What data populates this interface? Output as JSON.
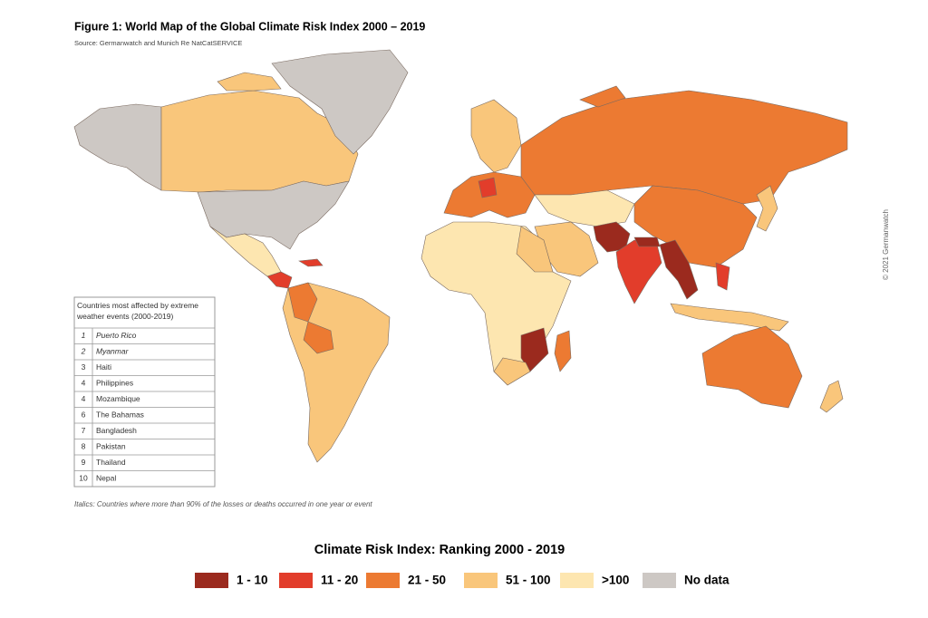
{
  "header": {
    "title": "Figure 1: World Map of the Global Climate Risk Index 2000 – 2019",
    "source": "Source: Germanwatch and Munich Re NatCatSERVICE"
  },
  "table": {
    "header": "Countries most affected by extreme weather events (2000-2019)",
    "rows": [
      {
        "rank": 1,
        "country": "Puerto Rico",
        "italic": true
      },
      {
        "rank": 2,
        "country": "Myanmar",
        "italic": true
      },
      {
        "rank": 3,
        "country": "Haiti",
        "italic": false
      },
      {
        "rank": 4,
        "country": "Philippines",
        "italic": false
      },
      {
        "rank": 4,
        "country": "Mozambique",
        "italic": false
      },
      {
        "rank": 6,
        "country": "The Bahamas",
        "italic": false
      },
      {
        "rank": 7,
        "country": "Bangladesh",
        "italic": false
      },
      {
        "rank": 8,
        "country": "Pakistan",
        "italic": false
      },
      {
        "rank": 9,
        "country": "Thailand",
        "italic": false
      },
      {
        "rank": 10,
        "country": "Nepal",
        "italic": false
      }
    ]
  },
  "note": "Italics: Countries where more than 90% of the losses or deaths occurred in one year or event",
  "legend": {
    "title": "Climate Risk Index: Ranking 2000 - 2019",
    "items": [
      {
        "label": "1 - 10",
        "color": "#9b2a1e"
      },
      {
        "label": "11 - 20",
        "color": "#e23d2b"
      },
      {
        "label": "21 - 50",
        "color": "#ec7a32"
      },
      {
        "label": "51 - 100",
        "color": "#f9c67b"
      },
      {
        "label": ">100",
        "color": "#fde6b0"
      },
      {
        "label": "No data",
        "color": "#cdc8c4"
      }
    ]
  },
  "copyright": "© 2021 Germanwatch"
}
